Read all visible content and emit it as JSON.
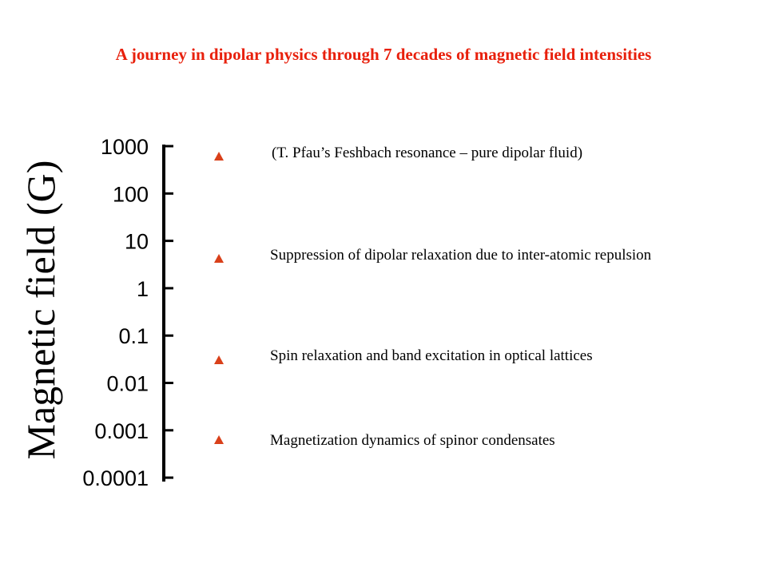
{
  "title": "A journey in dipolar physics through 7 decades of magnetic field intensities",
  "axis": {
    "label": "Magnetic field (G)",
    "scale": "log",
    "ticks": [
      "1000",
      "100",
      "10",
      "1",
      "0.1",
      "0.01",
      "0.001",
      "0.0001"
    ]
  },
  "annotations": [
    {
      "text": "(T. Pfau’s Feshbach resonance – pure dipolar fluid)"
    },
    {
      "text": "Suppression of dipolar relaxation due to inter-atomic repulsion"
    },
    {
      "text": "Spin relaxation and band excitation in optical lattices"
    },
    {
      "text": "Magnetization dynamics of spinor condensates"
    }
  ],
  "colors": {
    "title": "#e8200c",
    "marker": "#d9401a",
    "axis": "#000000"
  }
}
